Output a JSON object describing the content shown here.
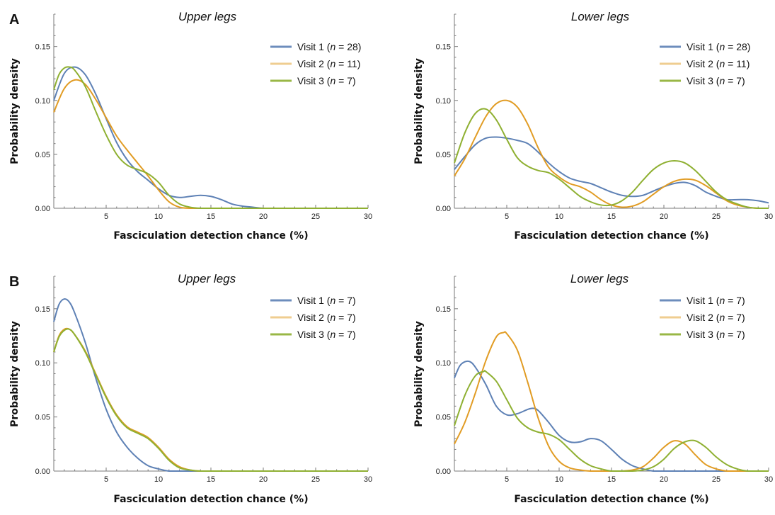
{
  "panel_letters": [
    "A",
    "B"
  ],
  "colors": {
    "visit1": "#5e81b5",
    "visit2": "#e19c24",
    "visit3": "#8fb032",
    "axis": "#7a7a7a"
  },
  "chart_data": [
    {
      "type": "line",
      "panel": "A",
      "title": "Upper legs",
      "xlabel": "Fasciculation detection chance (%)",
      "ylabel": "Probability density",
      "xlim": [
        0,
        30
      ],
      "ylim": [
        0,
        0.18
      ],
      "xticks": [
        5,
        10,
        15,
        20,
        25,
        30
      ],
      "yticks": [
        0.0,
        0.05,
        0.1,
        0.15
      ],
      "xtick_labels": [
        "5",
        "10",
        "15",
        "20",
        "25",
        "30"
      ],
      "ytick_labels": [
        "0.00",
        "0.05",
        "0.10",
        "0.15"
      ],
      "legend_position": "top-right",
      "series": [
        {
          "name": "Visit 1",
          "n_label": "n",
          "n_value": "= 28)",
          "color_key": "visit1",
          "x": [
            0,
            1,
            2,
            3,
            4,
            5,
            6,
            7,
            8,
            9,
            10,
            11,
            12,
            13,
            14,
            15,
            16,
            17,
            18,
            19,
            20,
            22,
            25,
            30
          ],
          "y": [
            0.1,
            0.125,
            0.131,
            0.124,
            0.106,
            0.083,
            0.061,
            0.045,
            0.034,
            0.026,
            0.018,
            0.012,
            0.01,
            0.011,
            0.012,
            0.011,
            0.008,
            0.004,
            0.002,
            0.001,
            0.0,
            0.0,
            0.0,
            0.0
          ]
        },
        {
          "name": "Visit 2",
          "n_label": "n",
          "n_value": "= 11)",
          "color_key": "visit2",
          "x": [
            0,
            1,
            2,
            3,
            4,
            5,
            6,
            7,
            8,
            9,
            10,
            11,
            12,
            13,
            14,
            15,
            20,
            25,
            30
          ],
          "y": [
            0.089,
            0.111,
            0.119,
            0.115,
            0.101,
            0.084,
            0.067,
            0.054,
            0.042,
            0.03,
            0.017,
            0.006,
            0.001,
            0.0,
            0.0,
            0.0,
            0.0,
            0.0,
            0.0
          ]
        },
        {
          "name": "Visit 3",
          "n_label": "n",
          "n_value": "= 7)",
          "color_key": "visit3",
          "x": [
            0,
            0.5,
            1,
            1.5,
            2,
            3,
            4,
            5,
            6,
            7,
            8,
            9,
            10,
            11,
            12,
            13,
            14,
            15,
            20,
            25,
            30
          ],
          "y": [
            0.11,
            0.124,
            0.13,
            0.131,
            0.128,
            0.113,
            0.09,
            0.068,
            0.05,
            0.04,
            0.036,
            0.032,
            0.024,
            0.012,
            0.004,
            0.001,
            0.0,
            0.0,
            0.0,
            0.0,
            0.0
          ]
        }
      ]
    },
    {
      "type": "line",
      "panel": "A",
      "title": "Lower legs",
      "xlabel": "Fasciculation detection chance (%)",
      "ylabel": "Probability density",
      "xlim": [
        0,
        30
      ],
      "ylim": [
        0,
        0.18
      ],
      "xticks": [
        5,
        10,
        15,
        20,
        25,
        30
      ],
      "yticks": [
        0.0,
        0.05,
        0.1,
        0.15
      ],
      "xtick_labels": [
        "5",
        "10",
        "15",
        "20",
        "25",
        "30"
      ],
      "ytick_labels": [
        "0.00",
        "0.05",
        "0.10",
        "0.15"
      ],
      "legend_position": "top-right",
      "series": [
        {
          "name": "Visit 1",
          "n_label": "n",
          "n_value": "= 28)",
          "color_key": "visit1",
          "x": [
            0,
            1,
            2,
            3,
            4,
            5,
            6,
            7,
            8,
            9,
            10,
            11,
            12,
            13,
            14,
            15,
            16,
            17,
            18,
            19,
            20,
            21,
            22,
            23,
            24,
            25,
            26,
            27,
            28,
            29,
            30
          ],
          "y": [
            0.036,
            0.048,
            0.059,
            0.065,
            0.066,
            0.065,
            0.063,
            0.06,
            0.052,
            0.042,
            0.034,
            0.028,
            0.025,
            0.023,
            0.019,
            0.015,
            0.012,
            0.011,
            0.012,
            0.016,
            0.02,
            0.023,
            0.024,
            0.021,
            0.015,
            0.011,
            0.008,
            0.008,
            0.008,
            0.007,
            0.005
          ]
        },
        {
          "name": "Visit 2",
          "n_label": "n",
          "n_value": "= 11)",
          "color_key": "visit2",
          "x": [
            0,
            1,
            2,
            3,
            4,
            5,
            6,
            7,
            8,
            9,
            10,
            11,
            12,
            13,
            14,
            15,
            16,
            17,
            18,
            19,
            20,
            21,
            22,
            23,
            24,
            25,
            26,
            27,
            28,
            29,
            30
          ],
          "y": [
            0.03,
            0.046,
            0.066,
            0.085,
            0.097,
            0.1,
            0.094,
            0.078,
            0.056,
            0.038,
            0.029,
            0.023,
            0.02,
            0.015,
            0.008,
            0.003,
            0.001,
            0.002,
            0.006,
            0.013,
            0.02,
            0.025,
            0.027,
            0.026,
            0.021,
            0.014,
            0.007,
            0.003,
            0.001,
            0.0,
            0.0
          ]
        },
        {
          "name": "Visit 3",
          "n_label": "n",
          "n_value": "= 7)",
          "color_key": "visit3",
          "x": [
            0,
            1,
            2,
            3,
            4,
            5,
            6,
            7,
            8,
            9,
            10,
            11,
            12,
            13,
            14,
            15,
            16,
            17,
            18,
            19,
            20,
            21,
            22,
            23,
            24,
            25,
            26,
            27,
            28,
            29,
            30
          ],
          "y": [
            0.042,
            0.07,
            0.088,
            0.092,
            0.082,
            0.064,
            0.047,
            0.039,
            0.035,
            0.033,
            0.027,
            0.019,
            0.011,
            0.006,
            0.003,
            0.003,
            0.007,
            0.015,
            0.026,
            0.036,
            0.042,
            0.044,
            0.042,
            0.035,
            0.025,
            0.015,
            0.008,
            0.004,
            0.001,
            0.0,
            0.0
          ]
        }
      ]
    },
    {
      "type": "line",
      "panel": "B",
      "title": "Upper legs",
      "xlabel": "Fasciculation detection chance (%)",
      "ylabel": "Probability density",
      "xlim": [
        0,
        30
      ],
      "ylim": [
        0,
        0.18
      ],
      "xticks": [
        5,
        10,
        15,
        20,
        25,
        30
      ],
      "yticks": [
        0.0,
        0.05,
        0.1,
        0.15
      ],
      "xtick_labels": [
        "5",
        "10",
        "15",
        "20",
        "25",
        "30"
      ],
      "ytick_labels": [
        "0.00",
        "0.05",
        "0.10",
        "0.15"
      ],
      "legend_position": "top-right",
      "series": [
        {
          "name": "Visit 1",
          "n_label": "n",
          "n_value": "= 7)",
          "color_key": "visit1",
          "x": [
            0,
            0.5,
            1,
            1.5,
            2,
            3,
            4,
            5,
            6,
            7,
            8,
            9,
            10,
            11,
            12,
            13,
            15,
            20,
            25,
            30
          ],
          "y": [
            0.138,
            0.154,
            0.159,
            0.156,
            0.146,
            0.119,
            0.086,
            0.057,
            0.036,
            0.022,
            0.012,
            0.005,
            0.002,
            0.0,
            0.0,
            0.0,
            0.0,
            0.0,
            0.0,
            0.0
          ]
        },
        {
          "name": "Visit 2",
          "n_label": "n",
          "n_value": "= 7)",
          "color_key": "visit2",
          "x": [
            0,
            0.5,
            1,
            1.5,
            2,
            3,
            4,
            5,
            6,
            7,
            8,
            9,
            10,
            11,
            12,
            13,
            14,
            15,
            20,
            25,
            30
          ],
          "y": [
            0.11,
            0.125,
            0.131,
            0.131,
            0.126,
            0.111,
            0.09,
            0.069,
            0.052,
            0.041,
            0.036,
            0.031,
            0.022,
            0.011,
            0.004,
            0.001,
            0.0,
            0.0,
            0.0,
            0.0,
            0.0
          ]
        },
        {
          "name": "Visit 3",
          "n_label": "n",
          "n_value": "= 7)",
          "color_key": "visit3",
          "x": [
            0,
            0.5,
            1,
            1.5,
            2,
            3,
            4,
            5,
            6,
            7,
            8,
            9,
            10,
            11,
            12,
            13,
            14,
            15,
            20,
            25,
            30
          ],
          "y": [
            0.11,
            0.124,
            0.13,
            0.131,
            0.126,
            0.11,
            0.089,
            0.068,
            0.051,
            0.04,
            0.035,
            0.03,
            0.021,
            0.01,
            0.003,
            0.001,
            0.0,
            0.0,
            0.0,
            0.0,
            0.0
          ]
        }
      ]
    },
    {
      "type": "line",
      "panel": "B",
      "title": "Lower legs",
      "xlabel": "Fasciculation detection chance (%)",
      "ylabel": "Probability density",
      "xlim": [
        0,
        30
      ],
      "ylim": [
        0,
        0.18
      ],
      "xticks": [
        5,
        10,
        15,
        20,
        25,
        30
      ],
      "yticks": [
        0.0,
        0.05,
        0.1,
        0.15
      ],
      "xtick_labels": [
        "5",
        "10",
        "15",
        "20",
        "25",
        "30"
      ],
      "ytick_labels": [
        "0.00",
        "0.05",
        "0.10",
        "0.15"
      ],
      "legend_position": "top-right",
      "series": [
        {
          "name": "Visit 1",
          "n_label": "n",
          "n_value": "= 7)",
          "color_key": "visit1",
          "x": [
            0,
            0.5,
            1,
            1.5,
            2,
            3,
            4,
            5,
            6,
            7,
            7.5,
            8,
            9,
            10,
            11,
            12,
            13,
            14,
            15,
            16,
            17,
            18,
            19,
            20,
            25,
            30
          ],
          "y": [
            0.086,
            0.097,
            0.101,
            0.101,
            0.096,
            0.08,
            0.06,
            0.052,
            0.053,
            0.057,
            0.058,
            0.056,
            0.045,
            0.033,
            0.027,
            0.027,
            0.03,
            0.028,
            0.02,
            0.011,
            0.005,
            0.002,
            0.0,
            0.0,
            0.0,
            0.0
          ]
        },
        {
          "name": "Visit 2",
          "n_label": "n",
          "n_value": "= 7)",
          "color_key": "visit2",
          "x": [
            0,
            1,
            2,
            3,
            4,
            4.7,
            5,
            6,
            7,
            8,
            9,
            10,
            11,
            12,
            13,
            14,
            15,
            16,
            17,
            18,
            19,
            20,
            21,
            22,
            23,
            24,
            25,
            26,
            27,
            28,
            30
          ],
          "y": [
            0.025,
            0.045,
            0.072,
            0.102,
            0.124,
            0.128,
            0.127,
            0.112,
            0.082,
            0.049,
            0.023,
            0.009,
            0.003,
            0.001,
            0.0,
            0.0,
            0.0,
            0.0,
            0.001,
            0.004,
            0.012,
            0.022,
            0.028,
            0.025,
            0.015,
            0.006,
            0.002,
            0.0,
            0.0,
            0.0,
            0.0
          ]
        },
        {
          "name": "Visit 3",
          "n_label": "n",
          "n_value": "= 7)",
          "color_key": "visit3",
          "x": [
            0,
            1,
            2,
            2.8,
            3,
            4,
            5,
            6,
            7,
            8,
            9,
            10,
            11,
            12,
            13,
            14,
            15,
            16,
            17,
            18,
            19,
            20,
            21,
            22,
            23,
            24,
            25,
            26,
            27,
            28,
            30
          ],
          "y": [
            0.042,
            0.07,
            0.088,
            0.092,
            0.092,
            0.083,
            0.066,
            0.049,
            0.04,
            0.036,
            0.034,
            0.029,
            0.02,
            0.011,
            0.005,
            0.002,
            0.0,
            0.0,
            0.0,
            0.001,
            0.004,
            0.011,
            0.021,
            0.027,
            0.028,
            0.022,
            0.013,
            0.006,
            0.002,
            0.0,
            0.0
          ]
        }
      ]
    }
  ]
}
